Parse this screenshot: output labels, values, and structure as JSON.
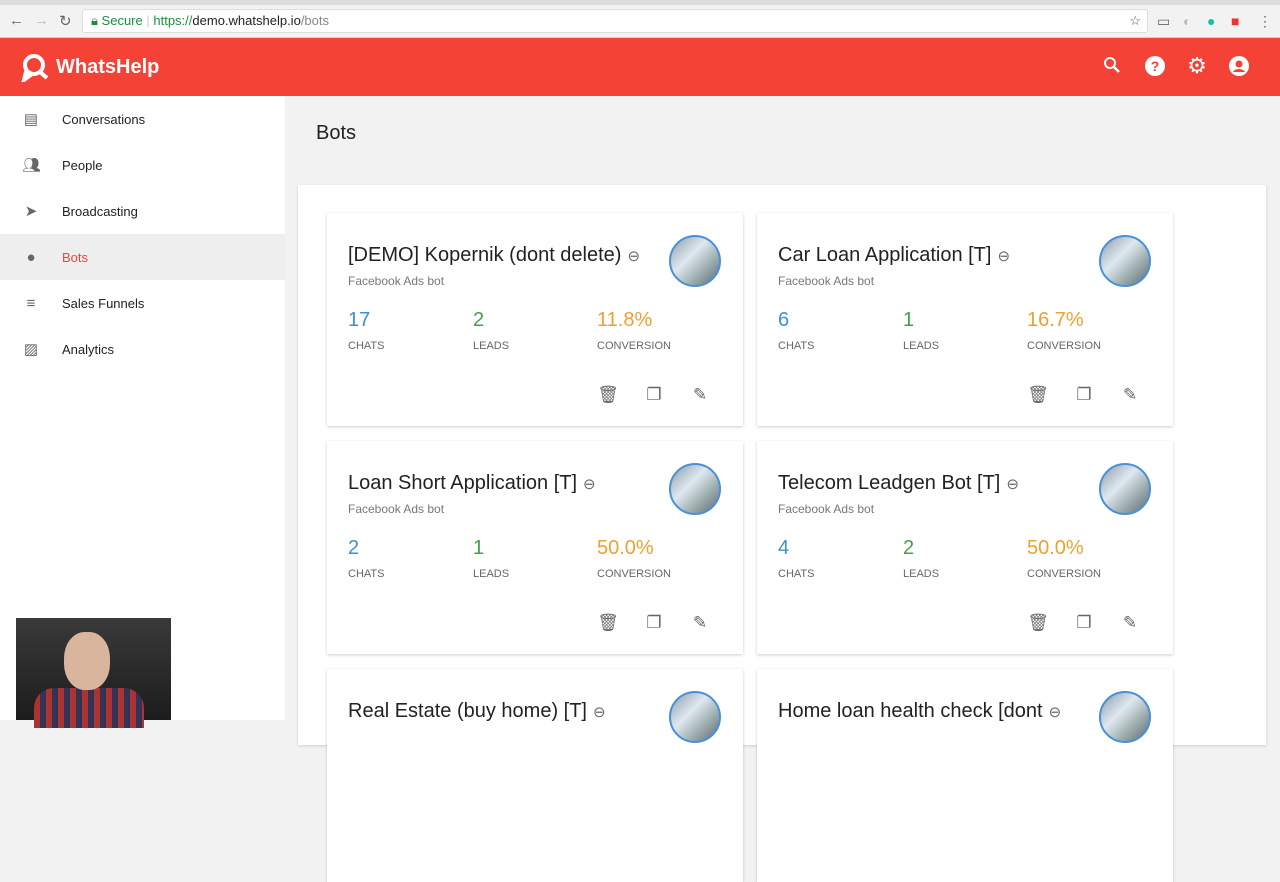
{
  "browser": {
    "secure_label": "Secure",
    "url_scheme": "https://",
    "url_host": "demo.whatshelp.io",
    "url_path": "/bots"
  },
  "app": {
    "logo": "WhatsHelp",
    "brand_color": "#f44336"
  },
  "header_icons": [
    "search-icon",
    "help-icon",
    "gear-icon",
    "account-icon"
  ],
  "sidebar": {
    "items": [
      {
        "label": "Conversations",
        "icon": "chat-icon"
      },
      {
        "label": "People",
        "icon": "people-icon"
      },
      {
        "label": "Broadcasting",
        "icon": "send-icon"
      },
      {
        "label": "Bots",
        "icon": "android-icon",
        "active": true
      },
      {
        "label": "Sales Funnels",
        "icon": "filter-icon"
      },
      {
        "label": "Analytics",
        "icon": "chart-icon"
      }
    ]
  },
  "page": {
    "title": "Bots"
  },
  "stat_labels": {
    "chats": "CHATS",
    "leads": "LEADS",
    "conversion": "CONVERSION"
  },
  "colors": {
    "chats": "#3d8fd6",
    "leads": "#43a047",
    "conversion": "#f0a030"
  },
  "bots": [
    {
      "name": "[DEMO] Kopernik (dont delete)",
      "type": "Facebook Ads bot",
      "chats": "17",
      "leads": "2",
      "conversion": "11.8%"
    },
    {
      "name": "Car Loan Application [T]",
      "type": "Facebook Ads bot",
      "chats": "6",
      "leads": "1",
      "conversion": "16.7%"
    },
    {
      "name": "Loan Short Application [T]",
      "type": "Facebook Ads bot",
      "chats": "2",
      "leads": "1",
      "conversion": "50.0%"
    },
    {
      "name": "Telecom Leadgen Bot [T]",
      "type": "Facebook Ads bot",
      "chats": "4",
      "leads": "2",
      "conversion": "50.0%"
    },
    {
      "name": "Real Estate (buy home) [T]"
    },
    {
      "name": "Home loan health check [dont"
    }
  ]
}
